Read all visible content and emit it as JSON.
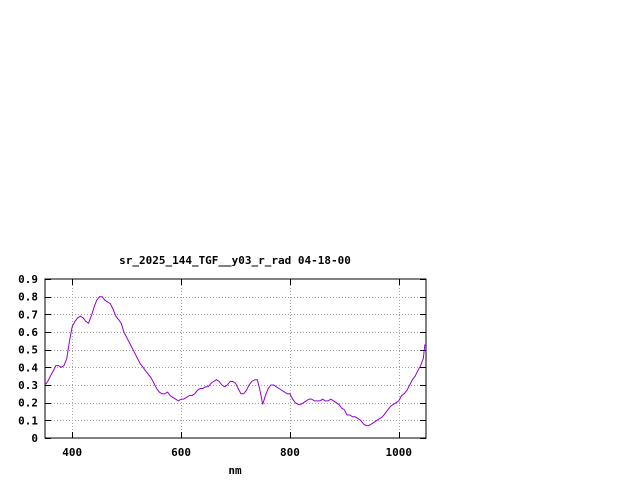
{
  "chart_data": {
    "type": "line",
    "title": "sr_2025_144_TGF__y03_r_rad 04-18-00",
    "xlabel": "nm",
    "ylabel": "",
    "xlim": [
      350,
      1050
    ],
    "ylim": [
      0,
      0.9
    ],
    "x_ticks": [
      400,
      600,
      800,
      1000
    ],
    "y_ticks": [
      0,
      0.1,
      0.2,
      0.3,
      0.4,
      0.5,
      0.6,
      0.7,
      0.8,
      0.9
    ],
    "x_tick_labels": [
      "400",
      "600",
      "800",
      "1000"
    ],
    "y_tick_labels": [
      "0",
      "0.1",
      "0.2",
      "0.3",
      "0.4",
      "0.5",
      "0.6",
      "0.7",
      "0.8",
      "0.9"
    ],
    "grid": true,
    "line_color": "#9400d3",
    "series": [
      {
        "x": [
          350,
          355,
          360,
          365,
          370,
          375,
          380,
          385,
          390,
          395,
          400,
          405,
          410,
          415,
          420,
          425,
          430,
          435,
          440,
          445,
          450,
          455,
          460,
          465,
          470,
          475,
          480,
          485,
          490,
          495,
          500,
          505,
          510,
          515,
          520,
          525,
          530,
          535,
          540,
          545,
          550,
          555,
          560,
          565,
          570,
          575,
          580,
          585,
          590,
          595,
          600,
          605,
          610,
          615,
          620,
          625,
          630,
          635,
          640,
          645,
          650,
          655,
          660,
          665,
          670,
          675,
          680,
          685,
          690,
          695,
          700,
          705,
          710,
          715,
          720,
          725,
          730,
          735,
          740,
          745,
          750,
          755,
          760,
          765,
          770,
          775,
          780,
          785,
          790,
          795,
          800,
          805,
          810,
          815,
          820,
          825,
          830,
          835,
          840,
          845,
          850,
          855,
          860,
          865,
          870,
          875,
          880,
          885,
          890,
          895,
          900,
          905,
          910,
          915,
          920,
          925,
          930,
          935,
          940,
          945,
          950,
          955,
          960,
          965,
          970,
          975,
          980,
          985,
          990,
          995,
          1000,
          1005,
          1010,
          1015,
          1020,
          1025,
          1030,
          1035,
          1040,
          1045,
          1048
        ],
        "y": [
          0.3,
          0.32,
          0.35,
          0.38,
          0.41,
          0.41,
          0.4,
          0.41,
          0.45,
          0.55,
          0.63,
          0.66,
          0.68,
          0.69,
          0.68,
          0.66,
          0.65,
          0.69,
          0.74,
          0.78,
          0.8,
          0.8,
          0.78,
          0.77,
          0.76,
          0.73,
          0.69,
          0.67,
          0.65,
          0.6,
          0.57,
          0.54,
          0.51,
          0.48,
          0.45,
          0.42,
          0.4,
          0.38,
          0.36,
          0.34,
          0.31,
          0.28,
          0.26,
          0.25,
          0.25,
          0.26,
          0.24,
          0.23,
          0.22,
          0.21,
          0.22,
          0.22,
          0.23,
          0.24,
          0.24,
          0.25,
          0.27,
          0.28,
          0.28,
          0.29,
          0.29,
          0.31,
          0.32,
          0.33,
          0.32,
          0.3,
          0.29,
          0.3,
          0.32,
          0.32,
          0.31,
          0.28,
          0.25,
          0.25,
          0.27,
          0.3,
          0.32,
          0.33,
          0.33,
          0.27,
          0.19,
          0.24,
          0.28,
          0.3,
          0.3,
          0.29,
          0.28,
          0.27,
          0.26,
          0.25,
          0.25,
          0.22,
          0.2,
          0.19,
          0.19,
          0.2,
          0.21,
          0.22,
          0.22,
          0.21,
          0.21,
          0.21,
          0.22,
          0.21,
          0.21,
          0.22,
          0.21,
          0.2,
          0.19,
          0.17,
          0.16,
          0.13,
          0.13,
          0.12,
          0.12,
          0.11,
          0.1,
          0.08,
          0.07,
          0.07,
          0.08,
          0.09,
          0.1,
          0.11,
          0.12,
          0.14,
          0.16,
          0.18,
          0.19,
          0.2,
          0.21,
          0.24,
          0.25,
          0.27,
          0.3,
          0.33,
          0.35,
          0.38,
          0.41,
          0.45,
          0.53
        ]
      }
    ]
  }
}
